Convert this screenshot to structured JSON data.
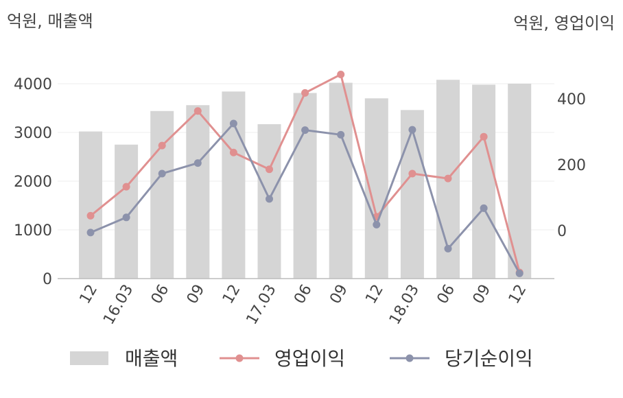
{
  "chart_data": {
    "type": "bar",
    "left_unit_label": "억원, 매출액",
    "right_unit_label": "억원, 영업이익",
    "categories": [
      "12",
      "16.03",
      "06",
      "09",
      "12",
      "17.03",
      "06",
      "09",
      "12",
      "18.03",
      "06",
      "09",
      "12"
    ],
    "y_left": {
      "ticks": [
        0,
        1000,
        2000,
        3000,
        4000
      ],
      "range": [
        0,
        4000
      ]
    },
    "y_right": {
      "ticks": [
        0,
        200,
        400
      ]
    },
    "series": [
      {
        "name": "매출액",
        "type": "bar",
        "axis": "left",
        "color": "#d5d5d5",
        "values": [
          3020,
          2750,
          3440,
          3560,
          3840,
          3170,
          3810,
          4020,
          3700,
          3460,
          4080,
          3980,
          4000
        ]
      },
      {
        "name": "영업이익",
        "type": "line",
        "axis": "right",
        "color": "#e09090",
        "values": [
          45,
          133,
          258,
          363,
          237,
          186,
          418,
          474,
          42,
          173,
          158,
          285,
          -127
        ]
      },
      {
        "name": "당기순이익",
        "type": "line",
        "axis": "right",
        "color": "#8c92ab",
        "values": [
          -6,
          40,
          173,
          205,
          325,
          96,
          305,
          291,
          18,
          306,
          -55,
          68,
          -130
        ]
      }
    ],
    "legend_position": "bottom",
    "grid": true
  }
}
